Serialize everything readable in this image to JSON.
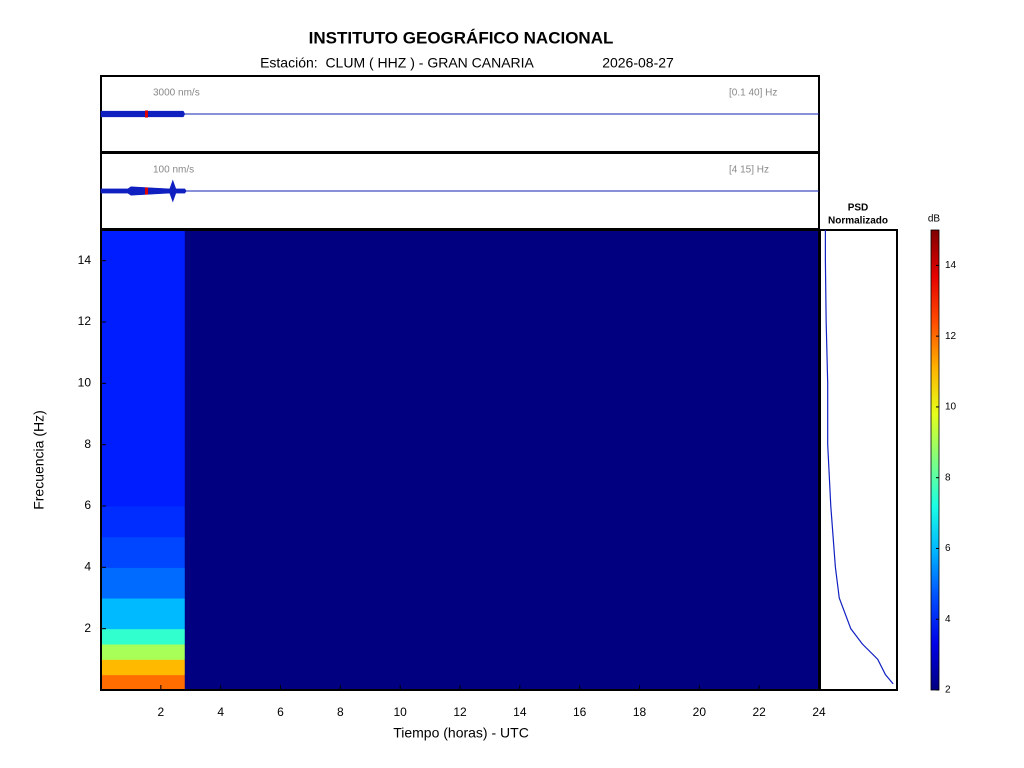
{
  "chart_data": {
    "type": "spectrogram",
    "title": "INSTITUTO GEOGRÁFICO NACIONAL",
    "subtitle": "Estación:  CLUM ( HHZ ) - GRAN CANARIA",
    "date": "2026-08-27",
    "xlabel": "Tiempo (horas) - UTC",
    "ylabel": "Frecuencia  (Hz)",
    "xlim": [
      0,
      24
    ],
    "xticks": [
      2,
      4,
      6,
      8,
      10,
      12,
      14,
      16,
      18,
      20,
      22,
      24
    ],
    "ylim": [
      0,
      15
    ],
    "yticks": [
      2,
      4,
      6,
      8,
      10,
      12,
      14
    ],
    "time_bins": [
      0,
      2.8,
      24
    ],
    "freq_bins": [
      0,
      0.5,
      1,
      1.5,
      2,
      3,
      4,
      5,
      6,
      8,
      10,
      12,
      15
    ],
    "values": [
      [
        12,
        11,
        9,
        7.5,
        6,
        5,
        4.5,
        4.2,
        4,
        4,
        4,
        4
      ],
      [
        2,
        2,
        2,
        2,
        2,
        2,
        2,
        2,
        2,
        2,
        2,
        2
      ]
    ],
    "colorbar": {
      "label": "dB",
      "clim": [
        2,
        15
      ],
      "ticks": [
        2,
        4,
        6,
        8,
        10,
        12,
        14
      ]
    },
    "psd": {
      "title": [
        "PSD",
        "Normalizado"
      ],
      "xlim": [
        0,
        1
      ],
      "freqs": [
        0.2,
        0.5,
        1,
        1.5,
        2,
        3,
        4,
        6,
        8,
        10,
        12,
        14,
        15
      ],
      "values": [
        0.95,
        0.85,
        0.75,
        0.55,
        0.4,
        0.25,
        0.2,
        0.14,
        0.1,
        0.1,
        0.08,
        0.07,
        0.07
      ]
    },
    "traces": [
      {
        "scale_label": "3000 nm/s",
        "band_label": "[0.1 40] Hz",
        "scale": 3000,
        "ylim": [
          -16000,
          16000
        ],
        "x": [
          0,
          2.75,
          2.8,
          24
        ],
        "values": [
          1200,
          1200,
          0,
          0
        ]
      },
      {
        "scale_label": "100 nm/s",
        "band_label": "[4 15] Hz",
        "scale": 100,
        "ylim": [
          -540,
          540
        ],
        "x": [
          0,
          0.9,
          1,
          2.3,
          2.4,
          2.5,
          2.8,
          2.85,
          24
        ],
        "values": [
          30,
          30,
          60,
          30,
          150,
          30,
          30,
          0,
          0
        ]
      }
    ]
  }
}
